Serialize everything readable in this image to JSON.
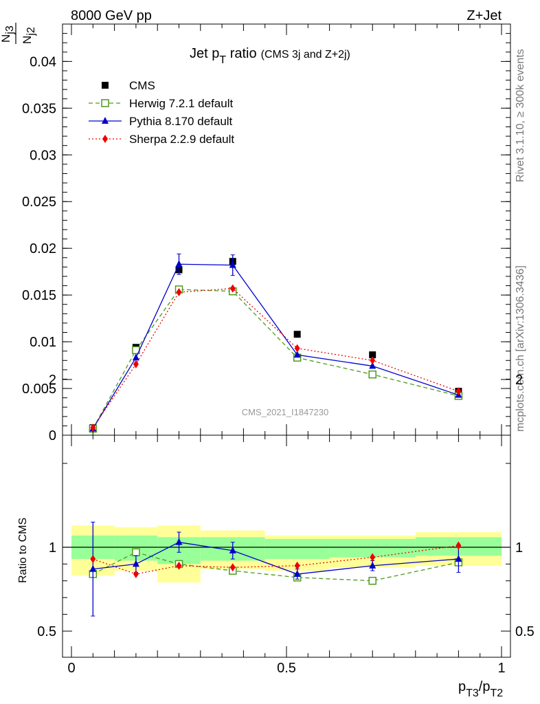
{
  "header": {
    "left": "8000 GeV pp",
    "right": "Z+Jet",
    "side_top": "Rivet 3.1.10, ≥ 300k events",
    "side_bottom": "mcplots.cern.ch [arXiv:1306.3436]",
    "watermark": "CMS_2021_I1847230"
  },
  "chart_data": [
    {
      "type": "scatter",
      "title": "Jet pT ratio (CMS 3j and Z+2j)",
      "title_main": "Jet p",
      "title_sub": "T",
      "title_tail": " ratio",
      "title_note": "(CMS 3j and Z+2j)",
      "ylabel": "N_j3 / N_j2",
      "ylabel_num": "N",
      "ylabel_num_sub": "j3",
      "ylabel_den": "N",
      "ylabel_den_sub": "j2",
      "xlim": [
        0,
        1
      ],
      "ylim": [
        0,
        0.044
      ],
      "yticks": [
        0,
        0.005,
        0.01,
        0.015,
        0.02,
        0.025,
        0.03,
        0.035,
        0.04
      ],
      "ytick_labels": [
        "0",
        "0.005",
        "0.01",
        "0.015",
        "0.02",
        "0.025",
        "0.03",
        "0.035",
        "0.04"
      ],
      "legend_position": "top-left",
      "series": [
        {
          "name": "CMS",
          "color": "#000000",
          "marker": "square-filled",
          "line": "none",
          "x": [
            0.05,
            0.15,
            0.25,
            0.375,
            0.525,
            0.7,
            0.9
          ],
          "y": [
            0.0008,
            0.0094,
            0.0177,
            0.0186,
            0.0108,
            0.0086,
            0.0047
          ]
        },
        {
          "name": "Herwig 7.2.1 default",
          "color": "#4a9a1a",
          "marker": "square-open",
          "line": "dashed",
          "x": [
            0.05,
            0.15,
            0.25,
            0.375,
            0.525,
            0.7,
            0.9
          ],
          "y": [
            0.0007,
            0.0091,
            0.0156,
            0.0154,
            0.0083,
            0.0065,
            0.0042
          ]
        },
        {
          "name": "Pythia 8.170 default",
          "color": "#0000cc",
          "marker": "triangle-filled",
          "line": "solid",
          "x": [
            0.05,
            0.15,
            0.25,
            0.375,
            0.525,
            0.7,
            0.9
          ],
          "y": [
            0.0007,
            0.0083,
            0.0183,
            0.0182,
            0.0086,
            0.0074,
            0.0043
          ]
        },
        {
          "name": "Sherpa 2.2.9 default",
          "color": "#ee0000",
          "marker": "diamond-filled",
          "line": "dotted",
          "x": [
            0.05,
            0.15,
            0.25,
            0.375,
            0.525,
            0.7,
            0.9
          ],
          "y": [
            0.0008,
            0.0076,
            0.0153,
            0.0157,
            0.0093,
            0.008,
            0.0047
          ]
        }
      ]
    },
    {
      "type": "scatter",
      "ylabel": "Ratio to CMS",
      "xlabel": "pT3/pT2",
      "xlabel_p1": "p",
      "xlabel_sub1": "T3",
      "xlabel_slash": "/p",
      "xlabel_sub2": "T2",
      "xlim": [
        0,
        1
      ],
      "ylim": [
        0.35,
        2.25
      ],
      "xticks": [
        0,
        0.5,
        1
      ],
      "xtick_labels": [
        "0",
        "0.5",
        "1"
      ],
      "yticks": [
        0.5,
        1,
        2
      ],
      "ytick_labels": [
        "0.5",
        "1",
        "2"
      ],
      "bands": {
        "color_outer": "#ffff99",
        "color_inner": "#99ff99",
        "bins": [
          {
            "xlo": 0.0,
            "xhi": 0.1,
            "lo2": 0.83,
            "hi2": 1.13,
            "lo1": 0.93,
            "hi1": 1.07
          },
          {
            "xlo": 0.1,
            "xhi": 0.2,
            "lo2": 0.86,
            "hi2": 1.12,
            "lo1": 0.92,
            "hi1": 1.07
          },
          {
            "xlo": 0.2,
            "xhi": 0.3,
            "lo2": 0.79,
            "hi2": 1.13,
            "lo1": 0.9,
            "hi1": 1.06
          },
          {
            "xlo": 0.3,
            "xhi": 0.45,
            "lo2": 0.87,
            "hi2": 1.1,
            "lo1": 0.92,
            "hi1": 1.06
          },
          {
            "xlo": 0.45,
            "xhi": 0.6,
            "lo2": 0.86,
            "hi2": 1.07,
            "lo1": 0.93,
            "hi1": 1.05
          },
          {
            "xlo": 0.6,
            "xhi": 0.8,
            "lo2": 0.88,
            "hi2": 1.07,
            "lo1": 0.94,
            "hi1": 1.05
          },
          {
            "xlo": 0.8,
            "xhi": 1.0,
            "lo2": 0.89,
            "hi2": 1.09,
            "lo1": 0.95,
            "hi1": 1.06
          }
        ]
      },
      "series": [
        {
          "name": "Herwig 7.2.1 default",
          "color": "#4a9a1a",
          "marker": "square-open",
          "line": "dashed",
          "x": [
            0.05,
            0.15,
            0.25,
            0.375,
            0.525,
            0.7,
            0.9
          ],
          "y": [
            0.84,
            0.97,
            0.9,
            0.86,
            0.82,
            0.8,
            0.91
          ]
        },
        {
          "name": "Pythia 8.170 default",
          "color": "#0000cc",
          "marker": "triangle-filled",
          "line": "solid",
          "x": [
            0.05,
            0.15,
            0.25,
            0.375,
            0.525,
            0.7,
            0.9
          ],
          "y": [
            0.87,
            0.9,
            1.03,
            0.98,
            0.84,
            0.89,
            0.93
          ],
          "err": [
            0.28,
            0.05,
            0.06,
            0.05,
            0.03,
            0.03,
            0.08
          ]
        },
        {
          "name": "Sherpa 2.2.9 default",
          "color": "#ee0000",
          "marker": "diamond-filled",
          "line": "dotted",
          "x": [
            0.05,
            0.15,
            0.25,
            0.375,
            0.525,
            0.7,
            0.9
          ],
          "y": [
            0.93,
            0.84,
            0.89,
            0.88,
            0.89,
            0.94,
            1.01
          ]
        }
      ]
    }
  ]
}
